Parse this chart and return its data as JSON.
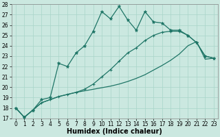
{
  "xlabel": "Humidex (Indice chaleur)",
  "xlim": [
    -0.5,
    23.5
  ],
  "ylim": [
    17,
    28
  ],
  "yticks": [
    17,
    18,
    19,
    20,
    21,
    22,
    23,
    24,
    25,
    26,
    27,
    28
  ],
  "xticks": [
    0,
    1,
    2,
    3,
    4,
    5,
    6,
    7,
    8,
    9,
    10,
    11,
    12,
    13,
    14,
    15,
    16,
    17,
    18,
    19,
    20,
    21,
    22,
    23
  ],
  "background_color": "#cbe8e0",
  "grid_color": "#a8d4c8",
  "line_color": "#1e7566",
  "line1_x": [
    0,
    1,
    2,
    3,
    4,
    5,
    6,
    7,
    8,
    9,
    10,
    11,
    12,
    13,
    14,
    15,
    16,
    17,
    18,
    19,
    20,
    21,
    22,
    23
  ],
  "line1_y": [
    18.0,
    17.1,
    17.8,
    18.5,
    18.8,
    19.1,
    19.3,
    19.5,
    19.65,
    19.8,
    19.95,
    20.1,
    20.3,
    20.55,
    20.85,
    21.2,
    21.65,
    22.1,
    22.6,
    23.2,
    24.0,
    24.4,
    22.7,
    22.8
  ],
  "line2_x": [
    0,
    1,
    2,
    3,
    4,
    5,
    6,
    7,
    8,
    9,
    10,
    11,
    12,
    13,
    14,
    15,
    16,
    17,
    18,
    19,
    20,
    21,
    22,
    23
  ],
  "line2_y": [
    18.0,
    17.1,
    17.8,
    18.5,
    18.8,
    19.1,
    19.3,
    19.5,
    19.8,
    20.3,
    21.0,
    21.7,
    22.5,
    23.3,
    23.8,
    24.5,
    25.0,
    25.3,
    25.4,
    25.4,
    25.0,
    24.3,
    23.0,
    22.8
  ],
  "line3_x": [
    0,
    1,
    2,
    3,
    4,
    5,
    6,
    7,
    8,
    9,
    10,
    11,
    12,
    13,
    14,
    15,
    16,
    17,
    18,
    19,
    20,
    21,
    22,
    23
  ],
  "line3_y": [
    18.0,
    17.1,
    17.8,
    18.8,
    19.0,
    22.3,
    22.0,
    23.3,
    24.0,
    25.4,
    27.3,
    26.6,
    27.8,
    26.5,
    25.5,
    27.3,
    26.3,
    26.2,
    25.5,
    25.5,
    25.0,
    24.3,
    23.0,
    22.8
  ],
  "tick_fontsize": 5.5,
  "xlabel_fontsize": 7,
  "xlabel_fontweight": "bold"
}
